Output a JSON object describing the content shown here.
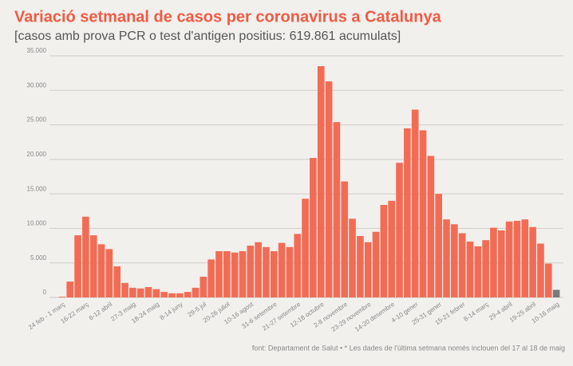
{
  "chart_data": {
    "type": "bar",
    "title": "Variació setmanal de casos per coronavirus a Catalunya",
    "subtitle": "[casos amb prova PCR o test d'antigen positius: 619.861 acumulats]",
    "source": "font: Departament de Salut • * Les dades de l'última setmana només inclouen del 17 al 18 de maig",
    "categories": [
      "24 feb - 1 març",
      null,
      null,
      "16-22 març",
      null,
      null,
      "6-12 abril",
      null,
      null,
      "27-3 maig",
      null,
      null,
      "18-24 maig",
      null,
      null,
      "8-14 juny",
      null,
      null,
      "29-5 jul",
      null,
      null,
      "20-26 juliol",
      null,
      null,
      "10-16 agost",
      null,
      null,
      "31-6 setembre",
      null,
      null,
      "21-27 setembre",
      null,
      null,
      "12-18 octubre",
      null,
      null,
      "2-8 novembre",
      null,
      null,
      "23-29 novembre",
      null,
      null,
      "14-20 desembre",
      null,
      null,
      "4-10 gener",
      null,
      null,
      "25-31 gener",
      null,
      null,
      "15-21 febrer",
      null,
      null,
      "8-14 març",
      null,
      null,
      "29-4 abril",
      null,
      null,
      "19-25 abril",
      null,
      null,
      "10-16 maig"
    ],
    "values": [
      100,
      2300,
      9000,
      11700,
      9000,
      7700,
      7000,
      4500,
      2100,
      1400,
      1300,
      1500,
      1200,
      800,
      600,
      600,
      800,
      1400,
      3000,
      5500,
      6700,
      6700,
      6500,
      6700,
      7500,
      8000,
      7300,
      6700,
      7900,
      7300,
      9200,
      14300,
      20200,
      33500,
      31300,
      25400,
      16800,
      11400,
      8900,
      8000,
      9500,
      13400,
      14000,
      19500,
      24500,
      27200,
      24200,
      20500,
      15000,
      11300,
      10600,
      9300,
      8100,
      7400,
      8300,
      10100,
      9700,
      11000,
      11100,
      11300,
      10200,
      7800,
      4900,
      1100
    ],
    "color": "#f26c55",
    "partial_color": "#7a7a7a",
    "ylim": [
      0,
      35000
    ],
    "yticks": [
      0,
      {
        "value": 5000,
        "label": "5.000"
      },
      {
        "value": 10000,
        "label": "10.000"
      },
      {
        "value": 15000,
        "label": "15.000"
      },
      {
        "value": 20000,
        "label": "20.000"
      },
      {
        "value": 25000,
        "label": "25.000"
      },
      {
        "value": 30000,
        "label": "30.000"
      },
      {
        "value": 35000,
        "label": "35.000"
      }
    ],
    "grid": true
  }
}
